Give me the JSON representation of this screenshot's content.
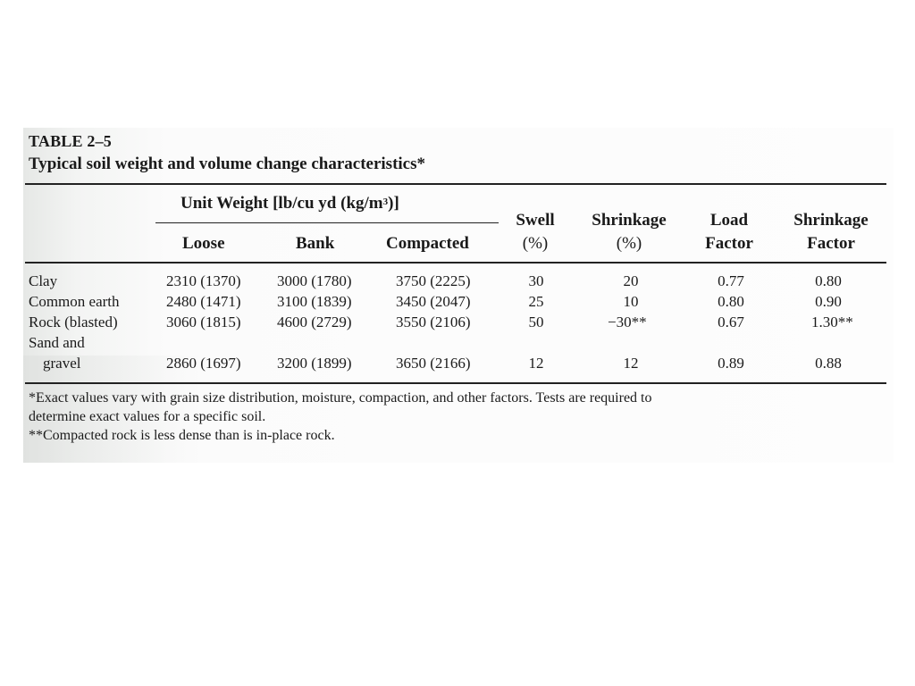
{
  "table": {
    "label": "TABLE 2–5",
    "title": "Typical soil weight and volume change characteristics*",
    "unit_weight_header_prefix": "Unit Weight [lb/cu yd (kg/m",
    "unit_weight_header_sup": "3",
    "unit_weight_header_suffix": ")]",
    "columns": {
      "loose": "Loose",
      "bank": "Bank",
      "compacted": "Compacted",
      "swell_1": "Swell",
      "swell_2": "(%)",
      "shrinkage_1": "Shrinkage",
      "shrinkage_2": "(%)",
      "load_factor_1": "Load",
      "load_factor_2": "Factor",
      "shrinkage_factor_1": "Shrinkage",
      "shrinkage_factor_2": "Factor"
    },
    "rows": [
      {
        "material": "Clay",
        "loose": "2310 (1370)",
        "bank": "3000 (1780)",
        "compacted": "3750 (2225)",
        "swell": "30",
        "shrinkage": "20",
        "load_factor": "0.77",
        "shrinkage_factor": "0.80"
      },
      {
        "material": "Common earth",
        "loose": "2480 (1471)",
        "bank": "3100 (1839)",
        "compacted": "3450 (2047)",
        "swell": "25",
        "shrinkage": "10",
        "load_factor": "0.80",
        "shrinkage_factor": "0.90"
      },
      {
        "material": "Rock (blasted)",
        "loose": "3060 (1815)",
        "bank": "4600 (2729)",
        "compacted": "3550 (2106)",
        "swell": "50",
        "shrinkage": "−30**",
        "load_factor": "0.67",
        "shrinkage_factor": "1.30**"
      },
      {
        "material_line1": "Sand and",
        "material_line2": "gravel",
        "loose": "2860 (1697)",
        "bank": "3200 (1899)",
        "compacted": "3650 (2166)",
        "swell": "12",
        "shrinkage": "12",
        "load_factor": "0.89",
        "shrinkage_factor": "0.88"
      }
    ],
    "footnotes": [
      "*Exact values vary with grain size distribution, moisture, compaction, and other factors. Tests are required to",
      "determine exact values for a specific soil.",
      "**Compacted rock is less dense than is in-place rock."
    ]
  }
}
